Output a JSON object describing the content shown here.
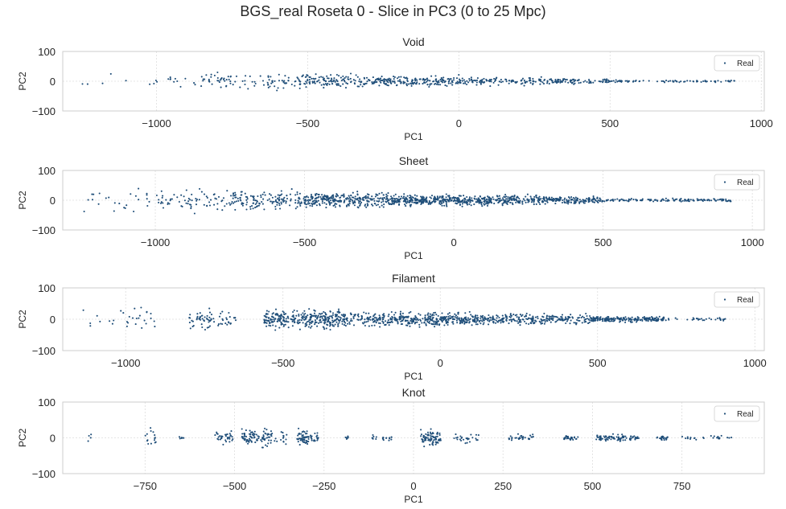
{
  "figure": {
    "title": "BGS_real Roseta 0 - Slice in PC3 (0 to 25 Mpc)"
  },
  "colors": {
    "points": "#1f4e79",
    "grid": "#dddddd",
    "frame": "#cccccc",
    "background": "#ffffff"
  },
  "chart_data": [
    {
      "type": "scatter",
      "title": "Void",
      "xlabel": "PC1",
      "ylabel": "PC2",
      "xlim": [
        -1310,
        1010
      ],
      "ylim": [
        -100,
        100
      ],
      "xticks": [
        -1000,
        -500,
        0,
        500,
        1000
      ],
      "yticks": [
        -100,
        0,
        100
      ],
      "grid": true,
      "legend": {
        "labels": [
          "Real"
        ],
        "placement": "top-right"
      },
      "series": [
        {
          "name": "Real",
          "points_approx": 700,
          "clusters": [
            {
              "x_from": -1250,
              "x_to": -1000,
              "n": 8,
              "y_spread": 45
            },
            {
              "x_from": -1000,
              "x_to": -900,
              "n": 10,
              "y_spread": 35
            },
            {
              "x_from": -880,
              "x_to": -580,
              "n": 75,
              "y_spread": 42
            },
            {
              "x_from": -580,
              "x_to": -300,
              "n": 150,
              "y_spread": 30
            },
            {
              "x_from": -300,
              "x_to": 0,
              "n": 190,
              "y_spread": 25
            },
            {
              "x_from": 0,
              "x_to": 300,
              "n": 130,
              "y_spread": 18
            },
            {
              "x_from": 300,
              "x_to": 520,
              "n": 90,
              "y_spread": 12
            },
            {
              "x_from": 520,
              "x_to": 920,
              "n": 70,
              "y_spread": 5
            }
          ]
        }
      ]
    },
    {
      "type": "scatter",
      "title": "Sheet",
      "xlabel": "PC1",
      "ylabel": "PC2",
      "xlim": [
        -1310,
        1040
      ],
      "ylim": [
        -100,
        100
      ],
      "xticks": [
        -1000,
        -500,
        0,
        500,
        1000
      ],
      "yticks": [
        -100,
        0,
        100
      ],
      "grid": true,
      "legend": {
        "labels": [
          "Real"
        ],
        "placement": "top-right"
      },
      "series": [
        {
          "name": "Real",
          "points_approx": 1350,
          "clusters": [
            {
              "x_from": -1240,
              "x_to": -1000,
              "n": 25,
              "y_spread": 55
            },
            {
              "x_from": -1000,
              "x_to": -750,
              "n": 70,
              "y_spread": 50
            },
            {
              "x_from": -750,
              "x_to": -500,
              "n": 150,
              "y_spread": 45
            },
            {
              "x_from": -500,
              "x_to": -200,
              "n": 300,
              "y_spread": 35
            },
            {
              "x_from": -200,
              "x_to": 50,
              "n": 280,
              "y_spread": 25
            },
            {
              "x_from": 50,
              "x_to": 300,
              "n": 230,
              "y_spread": 22
            },
            {
              "x_from": 300,
              "x_to": 500,
              "n": 160,
              "y_spread": 15
            },
            {
              "x_from": 500,
              "x_to": 930,
              "n": 135,
              "y_spread": 7
            }
          ]
        }
      ]
    },
    {
      "type": "scatter",
      "title": "Filament",
      "xlabel": "PC1",
      "ylabel": "PC2",
      "xlim": [
        -1200,
        1030
      ],
      "ylim": [
        -100,
        100
      ],
      "xticks": [
        -1000,
        -500,
        0,
        500,
        1000
      ],
      "yticks": [
        -100,
        0,
        100
      ],
      "grid": true,
      "legend": {
        "labels": [
          "Real"
        ],
        "placement": "top-right"
      },
      "series": [
        {
          "name": "Real",
          "points_approx": 1350,
          "clusters": [
            {
              "x_from": -1140,
              "x_to": -880,
              "n": 30,
              "y_spread": 45
            },
            {
              "x_from": -800,
              "x_to": -650,
              "n": 70,
              "y_spread": 45
            },
            {
              "x_from": -560,
              "x_to": -300,
              "n": 330,
              "y_spread": 40
            },
            {
              "x_from": -300,
              "x_to": -100,
              "n": 180,
              "y_spread": 30
            },
            {
              "x_from": -100,
              "x_to": 120,
              "n": 250,
              "y_spread": 28
            },
            {
              "x_from": 120,
              "x_to": 480,
              "n": 260,
              "y_spread": 22
            },
            {
              "x_from": 480,
              "x_to": 720,
              "n": 200,
              "y_spread": 12
            },
            {
              "x_from": 720,
              "x_to": 920,
              "n": 30,
              "y_spread": 6
            }
          ]
        }
      ]
    },
    {
      "type": "scatter",
      "title": "Knot",
      "xlabel": "PC1",
      "ylabel": "PC2",
      "xlim": [
        -980,
        980
      ],
      "ylim": [
        -100,
        100
      ],
      "xticks": [
        -750,
        -500,
        -250,
        0,
        250,
        500,
        750
      ],
      "yticks": [
        -100,
        0,
        100
      ],
      "grid": true,
      "legend": {
        "labels": [
          "Real"
        ],
        "placement": "top-right"
      },
      "series": [
        {
          "name": "Real",
          "points_approx": 600,
          "clusters": [
            {
              "x_from": -910,
              "x_to": -900,
              "n": 4,
              "y_spread": 25
            },
            {
              "x_from": -755,
              "x_to": -720,
              "n": 15,
              "y_spread": 35
            },
            {
              "x_from": -655,
              "x_to": -640,
              "n": 6,
              "y_spread": 6
            },
            {
              "x_from": -555,
              "x_to": -505,
              "n": 35,
              "y_spread": 25
            },
            {
              "x_from": -480,
              "x_to": -395,
              "n": 90,
              "y_spread": 35
            },
            {
              "x_from": -390,
              "x_to": -350,
              "n": 15,
              "y_spread": 30
            },
            {
              "x_from": -325,
              "x_to": -265,
              "n": 70,
              "y_spread": 30
            },
            {
              "x_from": -190,
              "x_to": -180,
              "n": 8,
              "y_spread": 10
            },
            {
              "x_from": -120,
              "x_to": -60,
              "n": 20,
              "y_spread": 10
            },
            {
              "x_from": 20,
              "x_to": 80,
              "n": 80,
              "y_spread": 30
            },
            {
              "x_from": 110,
              "x_to": 185,
              "n": 25,
              "y_spread": 20
            },
            {
              "x_from": 265,
              "x_to": 335,
              "n": 30,
              "y_spread": 15
            },
            {
              "x_from": 420,
              "x_to": 460,
              "n": 30,
              "y_spread": 12
            },
            {
              "x_from": 510,
              "x_to": 630,
              "n": 90,
              "y_spread": 12
            },
            {
              "x_from": 680,
              "x_to": 710,
              "n": 20,
              "y_spread": 10
            },
            {
              "x_from": 750,
              "x_to": 890,
              "n": 25,
              "y_spread": 8
            }
          ]
        }
      ]
    }
  ]
}
